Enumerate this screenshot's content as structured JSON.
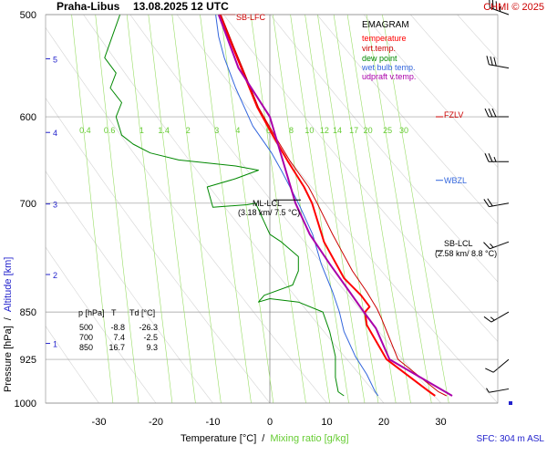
{
  "header": {
    "station": "Praha-Libus",
    "datetime": "13.08.2025 12 UTC",
    "credit": "CHMI © 2025"
  },
  "legend": {
    "title": "EMAGRAM",
    "items": [
      {
        "label": "temperature",
        "color": "#ff0000"
      },
      {
        "label": "virt.temp.",
        "color": "#cc0000"
      },
      {
        "label": "dew point",
        "color": "#008800"
      },
      {
        "label": "wet bulb temp.",
        "color": "#3366dd"
      },
      {
        "label": "udpraft v.temp.",
        "color": "#aa00aa"
      }
    ]
  },
  "axes": {
    "ylabel_pressure": "Pressure [hPa]",
    "ylabel_sep": "/",
    "ylabel_altitude": "Altitude [km]",
    "xlabel_temp": "Temperature [°C]",
    "xlabel_sep": "/",
    "xlabel_mix": "Mixing ratio [g/kg]",
    "sfc_label": "SFC: 304 m ASL",
    "p_ticks": [
      500,
      600,
      700,
      850,
      925,
      1000
    ],
    "t_ticks": [
      -30,
      -20,
      -10,
      0,
      10,
      20,
      30
    ],
    "km_ticks": [
      1,
      2,
      3,
      4,
      5
    ],
    "mix_labels": [
      "0.4",
      "0.6",
      "1",
      "1.4",
      "2",
      "3",
      "4",
      "6",
      "8",
      "10",
      "12",
      "14",
      "17",
      "20",
      "25",
      "30"
    ]
  },
  "levels": {
    "sb_lfc": "SB-LFC",
    "fzlv": "FZLV",
    "wbzl": "WBZL",
    "sb_lcl": "SB-LCL",
    "sb_lcl_info": "(2.58 km/ 8.8 °C)",
    "ml_lcl": "ML-LCL",
    "ml_lcl_info": "(3.18 km/ 7.5 °C)"
  },
  "table": {
    "headers": [
      "p [hPa]",
      "T",
      "Td [°C]"
    ],
    "rows": [
      [
        "500",
        "-8.8",
        "-26.3"
      ],
      [
        "700",
        "7.4",
        "-2.5"
      ],
      [
        "850",
        "16.7",
        "9.3"
      ]
    ]
  },
  "chart_data": {
    "type": "line",
    "title": "Praha-Libus 13.08.2025 12 UTC",
    "xlabel": "Temperature [°C] / Mixing ratio [g/kg]",
    "ylabel": "Pressure [hPa] / Altitude [km]",
    "xlim": [
      -36,
      40
    ],
    "ylim": [
      1000,
      500
    ],
    "y_scale": "log",
    "skew": "none",
    "series": [
      {
        "name": "temperature",
        "color": "#ff0000",
        "points": [
          [
            29,
            987
          ],
          [
            28,
            980
          ],
          [
            20.5,
            925
          ],
          [
            17,
            870
          ],
          [
            16.7,
            850
          ],
          [
            17.5,
            842
          ],
          [
            16,
            825
          ],
          [
            13,
            800
          ],
          [
            9.5,
            750
          ],
          [
            7.4,
            700
          ],
          [
            6,
            680
          ],
          [
            3.2,
            650
          ],
          [
            0.5,
            620
          ],
          [
            -2.2,
            590
          ],
          [
            -5,
            550
          ],
          [
            -6.5,
            530
          ],
          [
            -8.8,
            500
          ]
        ]
      },
      {
        "name": "virt.temp.",
        "color": "#cc0000",
        "points": [
          [
            31,
            987
          ],
          [
            29.6,
            980
          ],
          [
            22.5,
            925
          ],
          [
            19.6,
            860
          ],
          [
            18.8,
            845
          ],
          [
            17,
            820
          ],
          [
            14.5,
            790
          ],
          [
            11,
            740
          ],
          [
            8.3,
            700
          ],
          [
            6.8,
            680
          ],
          [
            3.6,
            650
          ],
          [
            0.8,
            620
          ],
          [
            -2,
            590
          ],
          [
            -4.8,
            550
          ],
          [
            -6.3,
            530
          ],
          [
            -8.6,
            500
          ]
        ]
      },
      {
        "name": "dew point",
        "color": "#008800",
        "points": [
          [
            13,
            987
          ],
          [
            12,
            980
          ],
          [
            11.5,
            955
          ],
          [
            11.5,
            920
          ],
          [
            11,
            900
          ],
          [
            10.5,
            880
          ],
          [
            9.3,
            850
          ],
          [
            5,
            835
          ],
          [
            0,
            830
          ],
          [
            -2,
            835
          ],
          [
            -1,
            825
          ],
          [
            4,
            810
          ],
          [
            5,
            790
          ],
          [
            5,
            770
          ],
          [
            2,
            750
          ],
          [
            0,
            740
          ],
          [
            -2.5,
            700
          ],
          [
            -4,
            702
          ],
          [
            -10,
            705
          ],
          [
            -11,
            680
          ],
          [
            -6,
            670
          ],
          [
            -2,
            660
          ],
          [
            -6,
            655
          ],
          [
            -16,
            648
          ],
          [
            -21,
            640
          ],
          [
            -24,
            630
          ],
          [
            -26,
            620
          ],
          [
            -27,
            600
          ],
          [
            -26,
            585
          ],
          [
            -28,
            570
          ],
          [
            -27,
            555
          ],
          [
            -29,
            540
          ],
          [
            -26.3,
            500
          ]
        ]
      },
      {
        "name": "wet bulb temp.",
        "color": "#3366dd",
        "points": [
          [
            19,
            987
          ],
          [
            18.5,
            980
          ],
          [
            17,
            950
          ],
          [
            15,
            920
          ],
          [
            13,
            880
          ],
          [
            12.2,
            850
          ],
          [
            11,
            820
          ],
          [
            9,
            780
          ],
          [
            7.5,
            740
          ],
          [
            5,
            700
          ],
          [
            2,
            660
          ],
          [
            0.3,
            640
          ],
          [
            -3,
            610
          ],
          [
            -6,
            570
          ],
          [
            -8,
            540
          ],
          [
            -9,
            520
          ],
          [
            -9.5,
            500
          ]
        ]
      },
      {
        "name": "udpraft v.temp.",
        "color": "#aa00aa",
        "points": [
          [
            32,
            987
          ],
          [
            21,
            925
          ],
          [
            18.6,
            875
          ],
          [
            16.5,
            850
          ],
          [
            14,
            820
          ],
          [
            10.5,
            780
          ],
          [
            7,
            740
          ],
          [
            4.5,
            700
          ],
          [
            0,
            600
          ],
          [
            -5.5,
            550
          ],
          [
            -9,
            500
          ]
        ]
      }
    ],
    "wind_barbs": [
      {
        "p": 500,
        "dir": 290,
        "speed_kt": 35
      },
      {
        "p": 550,
        "dir": 280,
        "speed_kt": 30
      },
      {
        "p": 600,
        "dir": 270,
        "speed_kt": 30
      },
      {
        "p": 650,
        "dir": 270,
        "speed_kt": 25
      },
      {
        "p": 700,
        "dir": 260,
        "speed_kt": 20
      },
      {
        "p": 750,
        "dir": 250,
        "speed_kt": 15
      },
      {
        "p": 850,
        "dir": 240,
        "speed_kt": 15
      },
      {
        "p": 925,
        "dir": 230,
        "speed_kt": 10
      },
      {
        "p": 975,
        "dir": 260,
        "speed_kt": 5
      },
      {
        "p": 1000,
        "dir": 0,
        "speed_kt": 0
      }
    ]
  }
}
